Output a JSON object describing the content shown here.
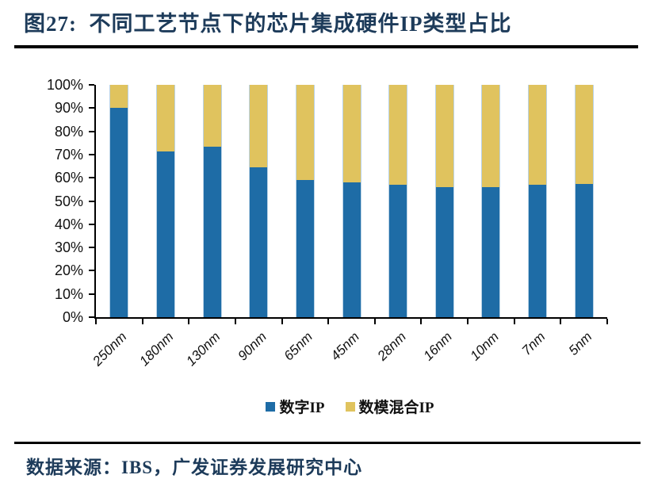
{
  "figure": {
    "title": "图27:  不同工艺节点下的芯片集成硬件IP类型占比",
    "source_label": "数据来源：IBS，广发证券发展研究中心"
  },
  "colors": {
    "digital_blue": "#1e6ca6",
    "mixed_yellow": "#e0c35e",
    "title_text": "#1d3b5a",
    "axis": "#000000"
  },
  "chart_data": {
    "type": "bar",
    "stacked": true,
    "title": "不同工艺节点下的芯片集成硬件IP类型占比",
    "categories": [
      "250nm",
      "180nm",
      "130nm",
      "90nm",
      "65nm",
      "45nm",
      "28nm",
      "16nm",
      "10nm",
      "7nm",
      "5nm"
    ],
    "series": [
      {
        "name": "数字IP",
        "color": "#1e6ca6",
        "values": [
          90,
          71.5,
          73.5,
          64.5,
          59,
          58,
          57,
          56,
          56,
          57,
          57.5
        ]
      },
      {
        "name": "数模混合IP",
        "color": "#e0c35e",
        "values": [
          10,
          28.5,
          26.5,
          35.5,
          41,
          42,
          43,
          44,
          44,
          43,
          42.5
        ]
      }
    ],
    "ylabel": "",
    "xlabel": "",
    "ylim": [
      0,
      100
    ],
    "y_ticks": [
      "100%",
      "90%",
      "80%",
      "70%",
      "60%",
      "50%",
      "40%",
      "30%",
      "20%",
      "10%",
      "0%"
    ],
    "grid": false,
    "legend_position": "bottom"
  }
}
